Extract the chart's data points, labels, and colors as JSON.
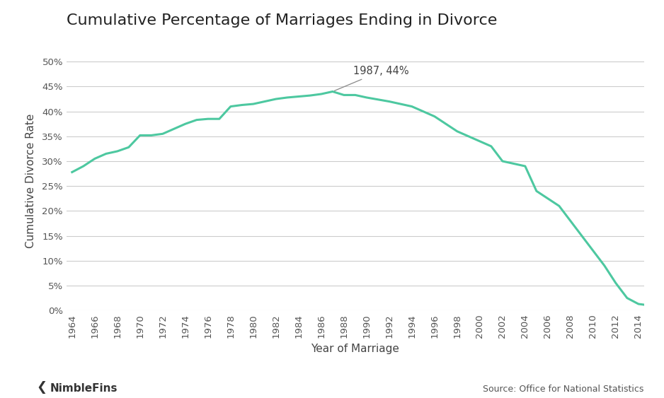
{
  "title": "Cumulative Percentage of Marriages Ending in Divorce",
  "xlabel": "Year of Marriage",
  "ylabel": "Cumulative Divorce Rate",
  "source_text": "Source: Office for National Statistics",
  "nimblefins_text": "NimbleFins",
  "annotation_text": "1987, 44%",
  "line_color": "#4DC8A0",
  "background_color": "#ffffff",
  "years": [
    1964,
    1965,
    1966,
    1967,
    1968,
    1969,
    1970,
    1971,
    1972,
    1973,
    1974,
    1975,
    1976,
    1977,
    1978,
    1979,
    1980,
    1981,
    1982,
    1983,
    1984,
    1985,
    1986,
    1987,
    1988,
    1989,
    1990,
    1991,
    1992,
    1993,
    1994,
    1995,
    1996,
    1997,
    1998,
    1999,
    2000,
    2001,
    2002,
    2003,
    2004,
    2005,
    2006,
    2007,
    2008,
    2009,
    2010,
    2011,
    2012,
    2013,
    2014,
    2015
  ],
  "values": [
    0.278,
    0.29,
    0.305,
    0.315,
    0.32,
    0.328,
    0.352,
    0.352,
    0.355,
    0.365,
    0.375,
    0.383,
    0.385,
    0.385,
    0.41,
    0.413,
    0.415,
    0.42,
    0.425,
    0.428,
    0.43,
    0.432,
    0.435,
    0.44,
    0.433,
    0.433,
    0.428,
    0.424,
    0.42,
    0.415,
    0.41,
    0.4,
    0.39,
    0.375,
    0.36,
    0.35,
    0.34,
    0.33,
    0.3,
    0.295,
    0.29,
    0.24,
    0.225,
    0.21,
    0.18,
    0.15,
    0.12,
    0.09,
    0.055,
    0.025,
    0.013,
    0.01
  ],
  "annotation_year": 1987,
  "annotation_value": 0.44,
  "ylim": [
    0,
    0.52
  ],
  "yticks": [
    0.0,
    0.05,
    0.1,
    0.15,
    0.2,
    0.25,
    0.3,
    0.35,
    0.4,
    0.45,
    0.5
  ],
  "xtick_years": [
    1964,
    1966,
    1968,
    1970,
    1972,
    1974,
    1976,
    1978,
    1980,
    1982,
    1984,
    1986,
    1988,
    1990,
    1992,
    1994,
    1996,
    1998,
    2000,
    2002,
    2004,
    2006,
    2008,
    2010,
    2012,
    2014
  ],
  "line_width": 2.2,
  "title_fontsize": 16,
  "axis_label_fontsize": 11,
  "tick_fontsize": 9.5,
  "annotation_fontsize": 10.5
}
